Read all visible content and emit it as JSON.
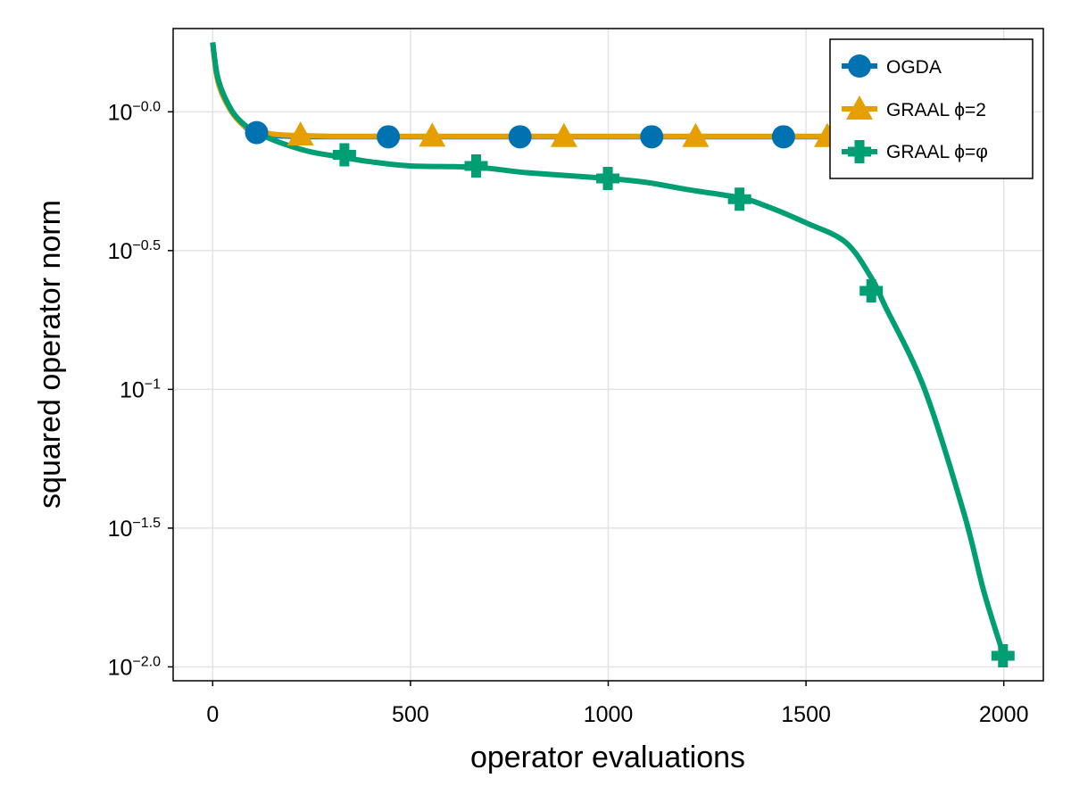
{
  "chart_data": {
    "type": "line",
    "title": "",
    "xlabel": "operator evaluations",
    "ylabel": "squared operator norm",
    "x_ticks": [
      {
        "value": 0,
        "label": "0"
      },
      {
        "value": 500,
        "label": "500"
      },
      {
        "value": 1000,
        "label": "1000"
      },
      {
        "value": 1500,
        "label": "1500"
      },
      {
        "value": 2000,
        "label": "2000"
      }
    ],
    "y_ticks": [
      {
        "value": 0.0,
        "base": "10",
        "exp": "−0.0"
      },
      {
        "value": -0.5,
        "base": "10",
        "exp": "−0.5"
      },
      {
        "value": -1.0,
        "base": "10",
        "exp": "−1"
      },
      {
        "value": -1.5,
        "base": "10",
        "exp": "−1.5"
      },
      {
        "value": -2.0,
        "base": "10",
        "exp": "−2.0"
      }
    ],
    "xlim": [
      -100,
      2100
    ],
    "ylim_log10": [
      -2.05,
      0.3
    ],
    "yscale": "log10",
    "grid": true,
    "legend_position": "top-right",
    "series": [
      {
        "name": "OGDA",
        "color": "#0072b2",
        "marker": "circle",
        "x": [
          0,
          10,
          25,
          50,
          75,
          100,
          150,
          200,
          300,
          500,
          800,
          1200,
          1600,
          2000
        ],
        "y_log10": [
          0.25,
          0.14,
          0.07,
          0.0,
          -0.045,
          -0.07,
          -0.085,
          -0.088,
          -0.09,
          -0.09,
          -0.09,
          -0.09,
          -0.09,
          -0.09
        ],
        "marker_x": [
          111,
          444,
          777,
          1110,
          1443
        ],
        "marker_y_log10": [
          -0.075,
          -0.09,
          -0.09,
          -0.09,
          -0.09
        ]
      },
      {
        "name": "GRAAL ϕ=2",
        "color": "#e69f00",
        "marker": "triangle",
        "x": [
          0,
          10,
          25,
          50,
          75,
          100,
          150,
          200,
          300,
          500,
          800,
          1200,
          1600,
          2000
        ],
        "y_log10": [
          0.25,
          0.13,
          0.06,
          -0.005,
          -0.045,
          -0.065,
          -0.08,
          -0.085,
          -0.088,
          -0.088,
          -0.088,
          -0.088,
          -0.088,
          -0.088
        ],
        "marker_x": [
          222,
          555,
          888,
          1221,
          1554
        ],
        "marker_y_log10": [
          -0.083,
          -0.087,
          -0.088,
          -0.088,
          -0.088
        ]
      },
      {
        "name": "GRAAL ϕ=φ",
        "color": "#009e73",
        "marker": "cross",
        "x": [
          0,
          10,
          25,
          50,
          75,
          100,
          150,
          200,
          250,
          333,
          400,
          500,
          666,
          800,
          1000,
          1100,
          1200,
          1333,
          1400,
          1500,
          1600,
          1666,
          1700,
          1800,
          1900,
          1950,
          2000
        ],
        "y_log10": [
          0.25,
          0.14,
          0.07,
          0.0,
          -0.04,
          -0.065,
          -0.1,
          -0.125,
          -0.145,
          -0.165,
          -0.18,
          -0.195,
          -0.2,
          -0.22,
          -0.24,
          -0.255,
          -0.28,
          -0.31,
          -0.34,
          -0.4,
          -0.47,
          -0.6,
          -0.7,
          -1.0,
          -1.45,
          -1.73,
          -1.96
        ],
        "marker_x": [
          333,
          666,
          999,
          1332,
          1665,
          1998
        ],
        "marker_y_log10": [
          -0.155,
          -0.195,
          -0.24,
          -0.315,
          -0.645,
          -1.96
        ]
      }
    ]
  }
}
